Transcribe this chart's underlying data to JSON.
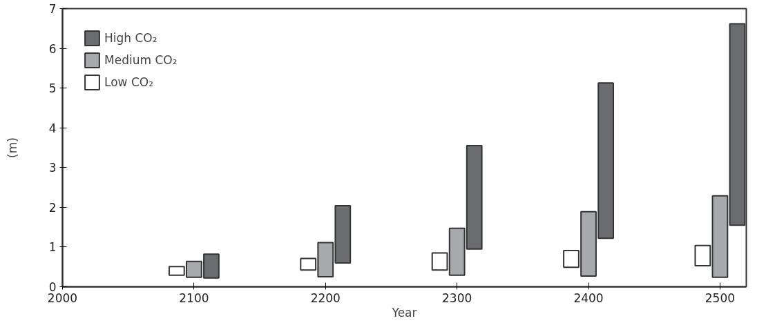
{
  "chart_data": {
    "type": "bar",
    "xlabel": "Year",
    "ylabel": "(m)",
    "x": [
      2100,
      2200,
      2300,
      2400,
      2500
    ],
    "xlim": [
      2000,
      2520
    ],
    "xticks": [
      2000,
      2100,
      2200,
      2300,
      2400,
      2500
    ],
    "ylim": [
      0,
      7
    ],
    "yticks": [
      0,
      1,
      2,
      3,
      4,
      5,
      6,
      7
    ],
    "grid": false,
    "legend": "top left",
    "series": [
      {
        "name": "Low CO₂",
        "color": "#ffffff",
        "base": [
          0.29,
          0.42,
          0.42,
          0.49,
          0.53
        ],
        "values": [
          0.22,
          0.29,
          0.43,
          0.42,
          0.51
        ]
      },
      {
        "name": "Medium CO₂",
        "color": "#a7a9ac",
        "base": [
          0.24,
          0.25,
          0.29,
          0.27,
          0.24
        ],
        "values": [
          0.4,
          0.86,
          1.18,
          1.62,
          2.05
        ]
      },
      {
        "name": "High CO₂",
        "color": "#6b6c70",
        "base": [
          0.22,
          0.6,
          0.95,
          1.22,
          1.55
        ],
        "values": [
          0.6,
          1.44,
          2.6,
          3.91,
          5.07
        ]
      }
    ]
  }
}
